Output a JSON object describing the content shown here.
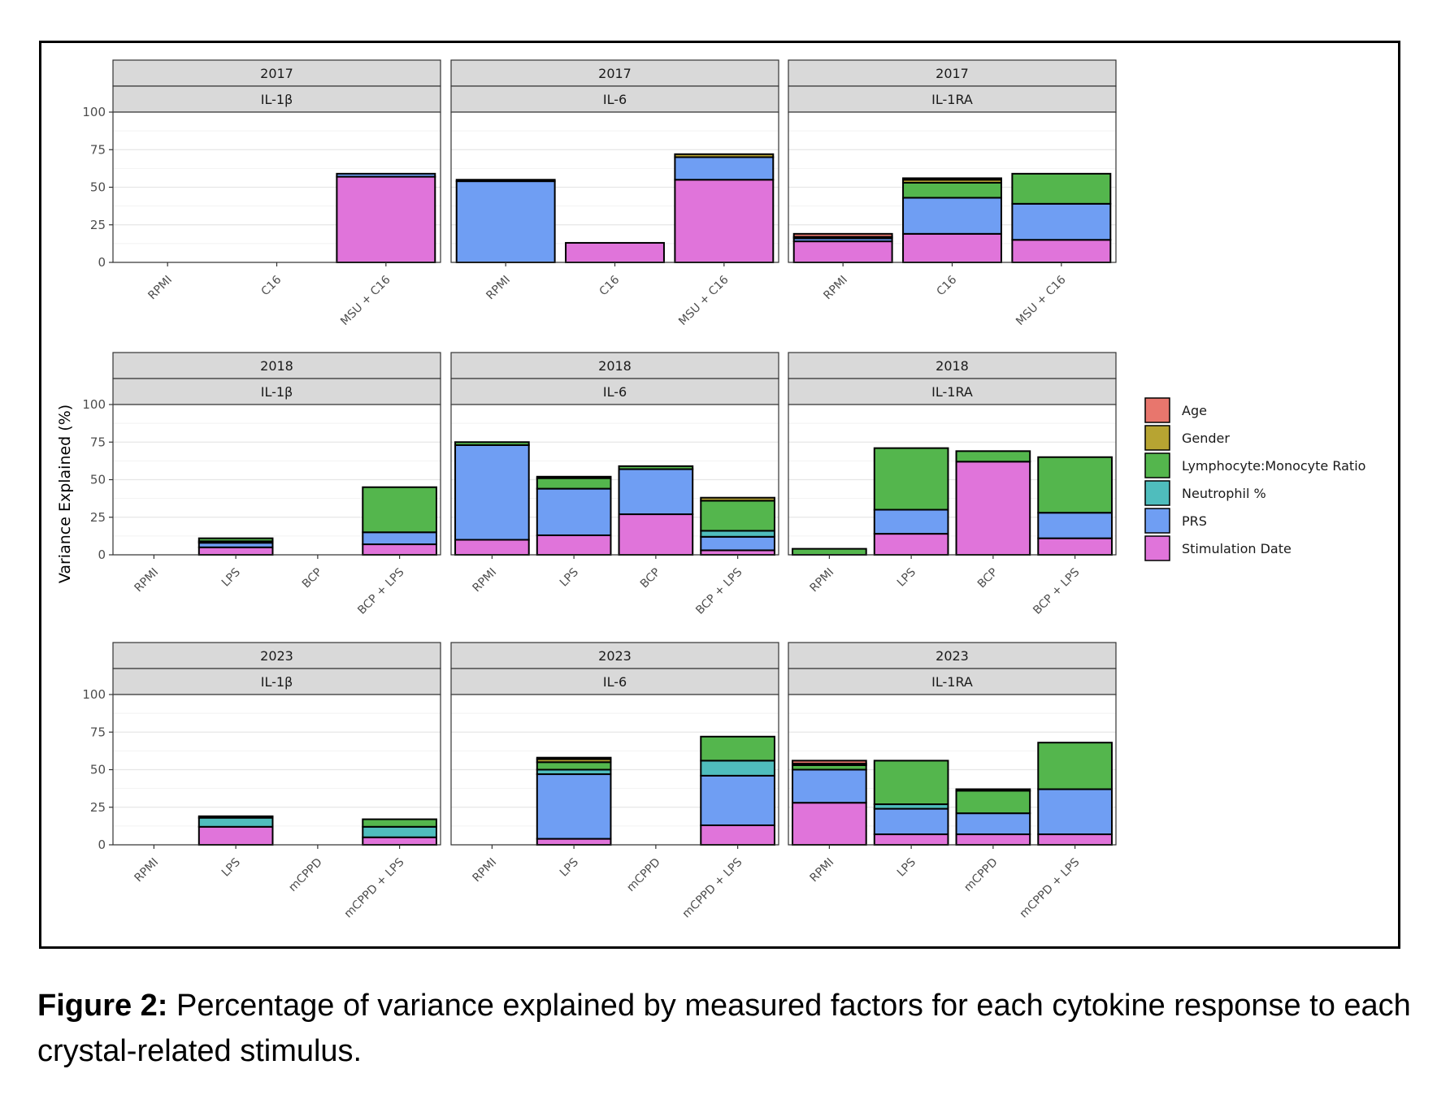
{
  "caption": {
    "label": "Figure 2:",
    "text": "Percentage of variance explained by measured factors for each cytokine response to each crystal-related stimulus."
  },
  "chart_data": {
    "type": "bar",
    "stacked": true,
    "ylabel": "Variance Explained (%)",
    "ylim": [
      0,
      100
    ],
    "yticks": [
      0,
      25,
      50,
      75,
      100
    ],
    "grid": true,
    "legend_position": "right",
    "legend": [
      {
        "name": "Age",
        "color": "#E8766D"
      },
      {
        "name": "Gender",
        "color": "#B7A432"
      },
      {
        "name": "Lymphocyte:Monocyte Ratio",
        "color": "#54B64D"
      },
      {
        "name": "Neutrophil %",
        "color": "#4FBDBD"
      },
      {
        "name": "PRS",
        "color": "#6F9EF3"
      },
      {
        "name": "Stimulation Date",
        "color": "#E074DA"
      }
    ],
    "factor_order": [
      "Stimulation Date",
      "PRS",
      "Neutrophil %",
      "Lymphocyte:Monocyte Ratio",
      "Gender",
      "Age"
    ],
    "panels": [
      {
        "year": "2017",
        "cytokine": "IL-1β",
        "categories": [
          "RPMI",
          "C16",
          "MSU + C16"
        ],
        "stacks": [
          [],
          [],
          [
            57,
            2
          ]
        ]
      },
      {
        "year": "2017",
        "cytokine": "IL-6",
        "categories": [
          "RPMI",
          "C16",
          "MSU + C16"
        ],
        "stacks": [
          [
            0,
            54,
            0,
            0,
            1
          ],
          [
            13
          ],
          [
            55,
            15,
            0,
            0,
            2
          ]
        ]
      },
      {
        "year": "2017",
        "cytokine": "IL-1RA",
        "categories": [
          "RPMI",
          "C16",
          "MSU + C16"
        ],
        "stacks": [
          [
            14,
            2,
            0,
            1,
            0,
            2
          ],
          [
            19,
            24,
            0,
            10,
            2,
            1
          ],
          [
            15,
            24,
            0,
            20
          ]
        ]
      },
      {
        "year": "2018",
        "cytokine": "IL-1β",
        "categories": [
          "RPMI",
          "LPS",
          "BCP",
          "BCP + LPS"
        ],
        "stacks": [
          [],
          [
            5,
            3,
            1,
            2
          ],
          [],
          [
            7,
            8,
            0,
            30
          ]
        ]
      },
      {
        "year": "2018",
        "cytokine": "IL-6",
        "categories": [
          "RPMI",
          "LPS",
          "BCP",
          "BCP + LPS"
        ],
        "stacks": [
          [
            10,
            63,
            0,
            2
          ],
          [
            13,
            31,
            0,
            7,
            1
          ],
          [
            27,
            30,
            0,
            2
          ],
          [
            3,
            9,
            4,
            20,
            2
          ]
        ]
      },
      {
        "year": "2018",
        "cytokine": "IL-1RA",
        "categories": [
          "RPMI",
          "LPS",
          "BCP",
          "BCP + LPS"
        ],
        "stacks": [
          [
            0,
            0,
            0,
            4
          ],
          [
            14,
            16,
            0,
            41
          ],
          [
            62,
            0,
            0,
            7
          ],
          [
            11,
            17,
            0,
            37
          ]
        ]
      },
      {
        "year": "2023",
        "cytokine": "IL-1β",
        "categories": [
          "RPMI",
          "LPS",
          "mCPPD",
          "mCPPD + LPS"
        ],
        "stacks": [
          [],
          [
            12,
            0,
            6,
            1
          ],
          [],
          [
            5,
            0,
            7,
            5
          ]
        ]
      },
      {
        "year": "2023",
        "cytokine": "IL-6",
        "categories": [
          "RPMI",
          "LPS",
          "mCPPD",
          "mCPPD + LPS"
        ],
        "stacks": [
          [],
          [
            4,
            43,
            3,
            5,
            2,
            1
          ],
          [],
          [
            13,
            33,
            10,
            16
          ]
        ]
      },
      {
        "year": "2023",
        "cytokine": "IL-1RA",
        "categories": [
          "RPMI",
          "LPS",
          "mCPPD",
          "mCPPD + LPS"
        ],
        "stacks": [
          [
            28,
            22,
            0,
            3,
            1,
            2
          ],
          [
            7,
            17,
            3,
            29
          ],
          [
            7,
            14,
            0,
            15,
            1
          ],
          [
            7,
            30,
            0,
            31
          ]
        ]
      }
    ]
  }
}
